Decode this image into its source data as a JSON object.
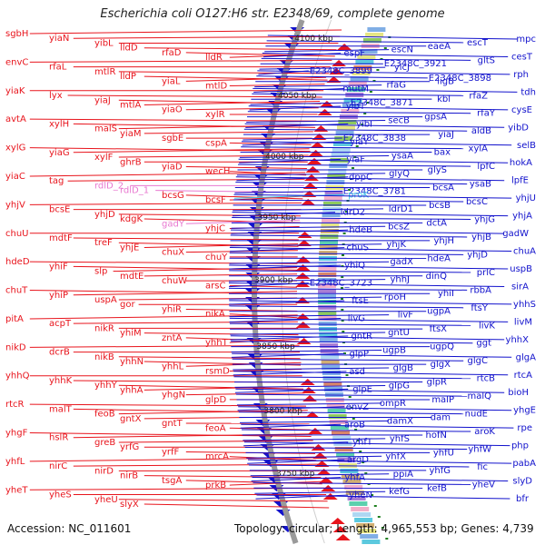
{
  "title": "Escherichia coli O127:H6 str. E2348/69, complete genome",
  "footer": {
    "accession": "Accession: NC_011601",
    "stats": "Topology: circular; Length: 4,965,553 bp; Genes: 4,739"
  },
  "colors": {
    "left_genes": "#e8141c",
    "right_genes": "#1111cc",
    "rna_genes": "#e878d0",
    "special_right": "#3fc8e8",
    "backbone": "#888888",
    "tick": "#208020"
  },
  "kbp_ticks": [
    "4100 kbp",
    "4050 kbp",
    "4000 kbp",
    "3950 kbp",
    "3900 kbp",
    "3850 kbp",
    "3800 kbp",
    "3750 kbp"
  ],
  "left_labels": [
    {
      "t": "sgbH",
      "k": "n"
    },
    {
      "t": "yiaN",
      "k": "n"
    },
    {
      "t": "yibL",
      "k": "n"
    },
    {
      "t": "lldD",
      "k": "n"
    },
    {
      "t": "rfaD",
      "k": "n"
    },
    {
      "t": "lldR",
      "k": "n"
    },
    {
      "t": "envC",
      "k": "n"
    },
    {
      "t": "rfaL",
      "k": "n"
    },
    {
      "t": "mtlR",
      "k": "n"
    },
    {
      "t": "lldP",
      "k": "n"
    },
    {
      "t": "yiaL",
      "k": "n"
    },
    {
      "t": "mtlD",
      "k": "n"
    },
    {
      "t": "yiaK",
      "k": "n"
    },
    {
      "t": "lyx",
      "k": "n"
    },
    {
      "t": "yiaJ",
      "k": "n"
    },
    {
      "t": "mtlA",
      "k": "n"
    },
    {
      "t": "yiaO",
      "k": "n"
    },
    {
      "t": "xylR",
      "k": "n"
    },
    {
      "t": "avtA",
      "k": "n"
    },
    {
      "t": "xylH",
      "k": "n"
    },
    {
      "t": "malS",
      "k": "n"
    },
    {
      "t": "yiaM",
      "k": "n"
    },
    {
      "t": "sgbE",
      "k": "n"
    },
    {
      "t": "cspA",
      "k": "n"
    },
    {
      "t": "xylG",
      "k": "n"
    },
    {
      "t": "yiaG",
      "k": "n"
    },
    {
      "t": "xylF",
      "k": "n"
    },
    {
      "t": "ghrB",
      "k": "n"
    },
    {
      "t": "yiaD",
      "k": "n"
    },
    {
      "t": "wecH",
      "k": "n"
    },
    {
      "t": "yiaC",
      "k": "n"
    },
    {
      "t": "tag",
      "k": "n"
    },
    {
      "t": "rdlD_2",
      "k": "r"
    },
    {
      "t": "rdlD_1",
      "k": "r"
    },
    {
      "t": "bcsG",
      "k": "n"
    },
    {
      "t": "bcsF",
      "k": "n"
    },
    {
      "t": "yhjV",
      "k": "n"
    },
    {
      "t": "bcsE",
      "k": "n"
    },
    {
      "t": "yhjD",
      "k": "n"
    },
    {
      "t": "kdgK",
      "k": "n"
    },
    {
      "t": "gadY",
      "k": "r"
    },
    {
      "t": "yhjC",
      "k": "n"
    },
    {
      "t": "chuU",
      "k": "n"
    },
    {
      "t": "mdtF",
      "k": "n"
    },
    {
      "t": "treF",
      "k": "n"
    },
    {
      "t": "yhjE",
      "k": "n"
    },
    {
      "t": "chuX",
      "k": "n"
    },
    {
      "t": "chuY",
      "k": "n"
    },
    {
      "t": "hdeD",
      "k": "n"
    },
    {
      "t": "yhiF",
      "k": "n"
    },
    {
      "t": "slp",
      "k": "n"
    },
    {
      "t": "mdtE",
      "k": "n"
    },
    {
      "t": "chuW",
      "k": "n"
    },
    {
      "t": "arsC",
      "k": "n"
    },
    {
      "t": "chuT",
      "k": "n"
    },
    {
      "t": "yhiP",
      "k": "n"
    },
    {
      "t": "uspA",
      "k": "n"
    },
    {
      "t": "gor",
      "k": "n"
    },
    {
      "t": "yhiR",
      "k": "n"
    },
    {
      "t": "nikA",
      "k": "n"
    },
    {
      "t": "pitA",
      "k": "n"
    },
    {
      "t": "acpT",
      "k": "n"
    },
    {
      "t": "nikR",
      "k": "n"
    },
    {
      "t": "yhiM",
      "k": "n"
    },
    {
      "t": "zntA",
      "k": "n"
    },
    {
      "t": "yhhT",
      "k": "n"
    },
    {
      "t": "nikD",
      "k": "n"
    },
    {
      "t": "dcrB",
      "k": "n"
    },
    {
      "t": "nikB",
      "k": "n"
    },
    {
      "t": "yhhN",
      "k": "n"
    },
    {
      "t": "yhhL",
      "k": "n"
    },
    {
      "t": "rsmD",
      "k": "n"
    },
    {
      "t": "yhhQ",
      "k": "n"
    },
    {
      "t": "yhhK",
      "k": "n"
    },
    {
      "t": "yhhY",
      "k": "n"
    },
    {
      "t": "yhhA",
      "k": "n"
    },
    {
      "t": "yhgN",
      "k": "n"
    },
    {
      "t": "glpD",
      "k": "n"
    },
    {
      "t": "rtcR",
      "k": "n"
    },
    {
      "t": "malT",
      "k": "n"
    },
    {
      "t": "feoB",
      "k": "n"
    },
    {
      "t": "gntX",
      "k": "n"
    },
    {
      "t": "gntT",
      "k": "n"
    },
    {
      "t": "feoA",
      "k": "n"
    },
    {
      "t": "yhgF",
      "k": "n"
    },
    {
      "t": "hslR",
      "k": "n"
    },
    {
      "t": "greB",
      "k": "n"
    },
    {
      "t": "yrfG",
      "k": "n"
    },
    {
      "t": "yrfF",
      "k": "n"
    },
    {
      "t": "mrcA",
      "k": "n"
    },
    {
      "t": "yhfL",
      "k": "n"
    },
    {
      "t": "nirC",
      "k": "n"
    },
    {
      "t": "nirD",
      "k": "n"
    },
    {
      "t": "nirB",
      "k": "n"
    },
    {
      "t": "tsgA",
      "k": "n"
    },
    {
      "t": "prkB",
      "k": "n"
    },
    {
      "t": "yheT",
      "k": "n"
    },
    {
      "t": "yheS",
      "k": "n"
    },
    {
      "t": "yheU",
      "k": "n"
    },
    {
      "t": "slyX",
      "k": "n"
    }
  ],
  "right_labels": [
    {
      "t": "mpc",
      "k": "n"
    },
    {
      "t": "escT",
      "k": "n"
    },
    {
      "t": "eaeA",
      "k": "n"
    },
    {
      "t": "escN",
      "k": "n"
    },
    {
      "t": "espF",
      "k": "n"
    },
    {
      "t": "cesT",
      "k": "n"
    },
    {
      "t": "gltS",
      "k": "n"
    },
    {
      "t": "E2348C_3921",
      "k": "n"
    },
    {
      "t": "yicJ",
      "k": "n"
    },
    {
      "t": "E2348C_3899",
      "k": "n"
    },
    {
      "t": "rph",
      "k": "n"
    },
    {
      "t": "E2348C_3898",
      "k": "n"
    },
    {
      "t": "ligB",
      "k": "n"
    },
    {
      "t": "rfaG",
      "k": "n"
    },
    {
      "t": "mutM",
      "k": "n"
    },
    {
      "t": "tdh",
      "k": "n"
    },
    {
      "t": "rfaZ",
      "k": "n"
    },
    {
      "t": "kbl",
      "k": "n"
    },
    {
      "t": "E2348C_3871",
      "k": "n"
    },
    {
      "t": "yibT",
      "k": "n"
    },
    {
      "t": "cysE",
      "k": "n"
    },
    {
      "t": "rfaY",
      "k": "n"
    },
    {
      "t": "gpsA",
      "k": "n"
    },
    {
      "t": "secB",
      "k": "n"
    },
    {
      "t": "yibI",
      "k": "n"
    },
    {
      "t": "yibD",
      "k": "n"
    },
    {
      "t": "aldB",
      "k": "n"
    },
    {
      "t": "yiaJ",
      "k": "n"
    },
    {
      "t": "E2348C_3838",
      "k": "n"
    },
    {
      "t": "yiaY",
      "k": "n"
    },
    {
      "t": "selB",
      "k": "n"
    },
    {
      "t": "xylA",
      "k": "n"
    },
    {
      "t": "bax",
      "k": "n"
    },
    {
      "t": "ysaA",
      "k": "n"
    },
    {
      "t": "yiaF",
      "k": "n"
    },
    {
      "t": "hokA",
      "k": "n"
    },
    {
      "t": "lpfC",
      "k": "n"
    },
    {
      "t": "glyS",
      "k": "n"
    },
    {
      "t": "glyQ",
      "k": "n"
    },
    {
      "t": "dppC",
      "k": "n"
    },
    {
      "t": "lpfE",
      "k": "n"
    },
    {
      "t": "ysaB",
      "k": "n"
    },
    {
      "t": "bcsA",
      "k": "n"
    },
    {
      "t": "E2348C_3781",
      "k": "n"
    },
    {
      "t": "proK",
      "k": "c"
    },
    {
      "t": "yhjU",
      "k": "n"
    },
    {
      "t": "bcsC",
      "k": "n"
    },
    {
      "t": "bcsB",
      "k": "n"
    },
    {
      "t": "ldrD1",
      "k": "n"
    },
    {
      "t": "ldrD2",
      "k": "n"
    },
    {
      "t": "yhjA",
      "k": "n"
    },
    {
      "t": "yhjG",
      "k": "n"
    },
    {
      "t": "dctA",
      "k": "n"
    },
    {
      "t": "bcsZ",
      "k": "n"
    },
    {
      "t": "hdeB",
      "k": "n"
    },
    {
      "t": "gadW",
      "k": "n"
    },
    {
      "t": "yhjB",
      "k": "n"
    },
    {
      "t": "yhjH",
      "k": "n"
    },
    {
      "t": "yhjK",
      "k": "n"
    },
    {
      "t": "chuS",
      "k": "n"
    },
    {
      "t": "chuA",
      "k": "n"
    },
    {
      "t": "yhjD",
      "k": "n"
    },
    {
      "t": "hdeA",
      "k": "n"
    },
    {
      "t": "gadX",
      "k": "n"
    },
    {
      "t": "yhiQ",
      "k": "n"
    },
    {
      "t": "uspB",
      "k": "n"
    },
    {
      "t": "prlC",
      "k": "n"
    },
    {
      "t": "dinQ",
      "k": "n"
    },
    {
      "t": "yhhJ",
      "k": "n"
    },
    {
      "t": "E2348C_3723",
      "k": "n"
    },
    {
      "t": "sirA",
      "k": "n"
    },
    {
      "t": "rbbA",
      "k": "n"
    },
    {
      "t": "yhiI",
      "k": "n"
    },
    {
      "t": "rpoH",
      "k": "n"
    },
    {
      "t": "ftsE",
      "k": "n"
    },
    {
      "t": "yhhS",
      "k": "n"
    },
    {
      "t": "ftsY",
      "k": "n"
    },
    {
      "t": "ugpA",
      "k": "n"
    },
    {
      "t": "livF",
      "k": "n"
    },
    {
      "t": "livG",
      "k": "n"
    },
    {
      "t": "livM",
      "k": "n"
    },
    {
      "t": "livK",
      "k": "n"
    },
    {
      "t": "ftsX",
      "k": "n"
    },
    {
      "t": "gntU",
      "k": "n"
    },
    {
      "t": "gntR",
      "k": "n"
    },
    {
      "t": "yhhX",
      "k": "n"
    },
    {
      "t": "ggt",
      "k": "n"
    },
    {
      "t": "ugpQ",
      "k": "n"
    },
    {
      "t": "ugpB",
      "k": "n"
    },
    {
      "t": "glpP",
      "k": "n"
    },
    {
      "t": "glgA",
      "k": "n"
    },
    {
      "t": "glgC",
      "k": "n"
    },
    {
      "t": "glgX",
      "k": "n"
    },
    {
      "t": "glgB",
      "k": "n"
    },
    {
      "t": "asd",
      "k": "n"
    },
    {
      "t": "rtcA",
      "k": "n"
    },
    {
      "t": "rtcB",
      "k": "n"
    },
    {
      "t": "glpR",
      "k": "n"
    },
    {
      "t": "glpG",
      "k": "n"
    },
    {
      "t": "glpE",
      "k": "n"
    },
    {
      "t": "bioH",
      "k": "n"
    },
    {
      "t": "malQ",
      "k": "n"
    },
    {
      "t": "malP",
      "k": "n"
    },
    {
      "t": "ompR",
      "k": "n"
    },
    {
      "t": "envZ",
      "k": "n"
    },
    {
      "t": "yhgE",
      "k": "n"
    },
    {
      "t": "nudE",
      "k": "n"
    },
    {
      "t": "dam",
      "k": "n"
    },
    {
      "t": "damX",
      "k": "n"
    },
    {
      "t": "aroB",
      "k": "n"
    },
    {
      "t": "rpe",
      "k": "n"
    },
    {
      "t": "aroK",
      "k": "n"
    },
    {
      "t": "hofN",
      "k": "n"
    },
    {
      "t": "yhfS",
      "k": "n"
    },
    {
      "t": "yhfT",
      "k": "n"
    },
    {
      "t": "php",
      "k": "n"
    },
    {
      "t": "yhfW",
      "k": "n"
    },
    {
      "t": "yhfU",
      "k": "n"
    },
    {
      "t": "yhfX",
      "k": "n"
    },
    {
      "t": "argD",
      "k": "n"
    },
    {
      "t": "pabA",
      "k": "n"
    },
    {
      "t": "fic",
      "k": "n"
    },
    {
      "t": "yhfG",
      "k": "n"
    },
    {
      "t": "ppiA",
      "k": "n"
    },
    {
      "t": "yhfA",
      "k": "n"
    },
    {
      "t": "slyD",
      "k": "n"
    },
    {
      "t": "yheV",
      "k": "n"
    },
    {
      "t": "kefB",
      "k": "n"
    },
    {
      "t": "kefG",
      "k": "n"
    },
    {
      "t": "yheN",
      "k": "n"
    },
    {
      "t": "bfr",
      "k": "n"
    }
  ]
}
